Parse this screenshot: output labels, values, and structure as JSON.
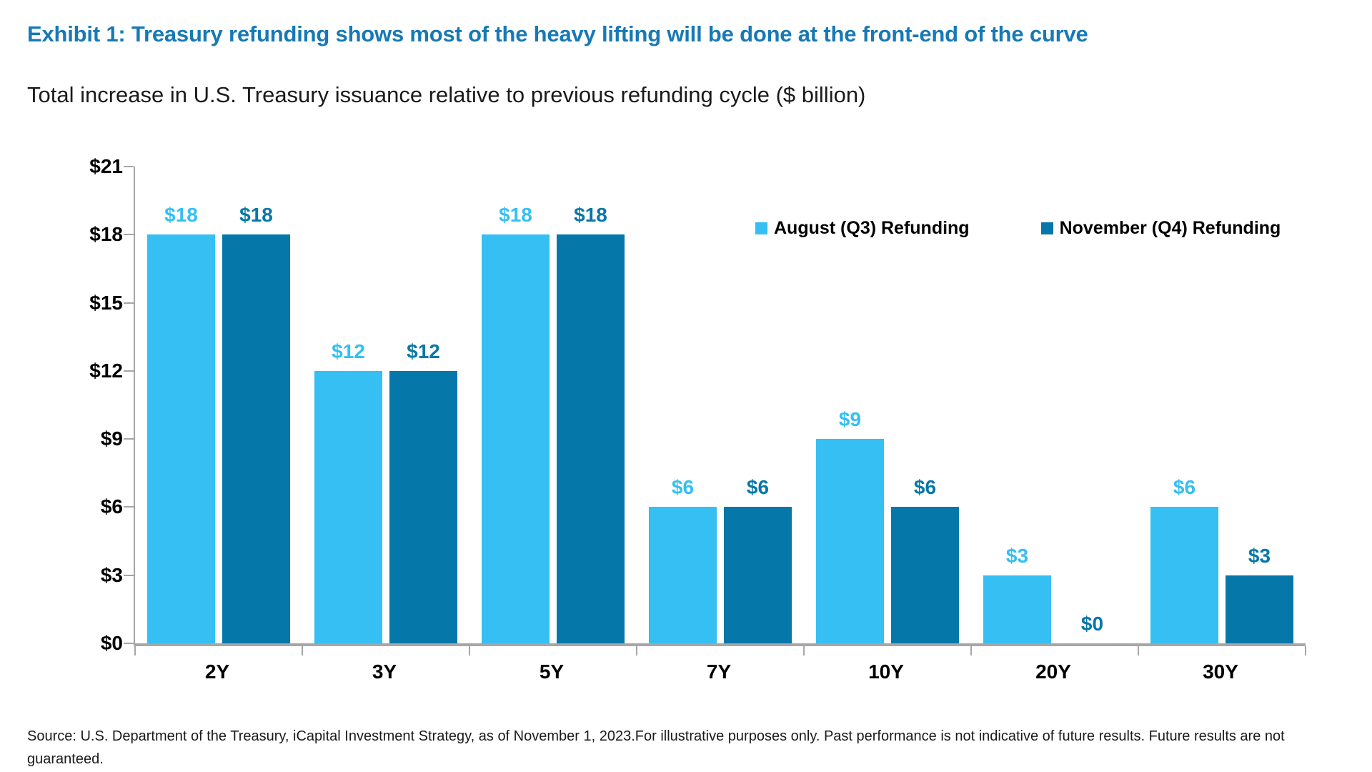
{
  "header": {
    "exhibit_title": "Exhibit 1: Treasury refunding shows most of the heavy lifting will be done at the front-end of the curve",
    "subtitle": "Total increase in U.S. Treasury issuance relative to previous refunding cycle ($ billion)"
  },
  "chart_data": {
    "type": "bar",
    "title": "Exhibit 1: Treasury refunding shows most of the heavy lifting will be done at the front-end of the curve",
    "subtitle": "Total increase in U.S. Treasury issuance relative to previous refunding cycle ($ billion)",
    "categories": [
      "2Y",
      "3Y",
      "5Y",
      "7Y",
      "10Y",
      "20Y",
      "30Y"
    ],
    "series": [
      {
        "name": "August (Q3) Refunding",
        "color": "#35BFF3",
        "values": [
          18,
          12,
          18,
          6,
          9,
          3,
          6
        ]
      },
      {
        "name": "November (Q4) Refunding",
        "color": "#0677A9",
        "values": [
          18,
          12,
          18,
          6,
          6,
          0,
          3
        ]
      }
    ],
    "value_prefix": "$",
    "xlabel": "",
    "ylabel": "",
    "ylim": [
      0,
      21
    ],
    "ytick_step": 3,
    "ytick_labels": [
      "$0",
      "$3",
      "$6",
      "$9",
      "$12",
      "$15",
      "$18",
      "$21"
    ],
    "grid": false,
    "legend_position": "top-right",
    "axis_color": "#A6A6A6"
  },
  "colors": {
    "title_blue": "#1779B5",
    "august_light_blue": "#35BFF3",
    "november_dark_blue": "#0677A9",
    "axis_gray": "#A6A6A6",
    "text_black": "#1A1A1A"
  },
  "footer": {
    "source": "Source: U.S. Department of the Treasury, iCapital Investment Strategy, as of November 1, 2023.For illustrative purposes only. Past performance is not indicative of future results. Future results are not guaranteed."
  }
}
